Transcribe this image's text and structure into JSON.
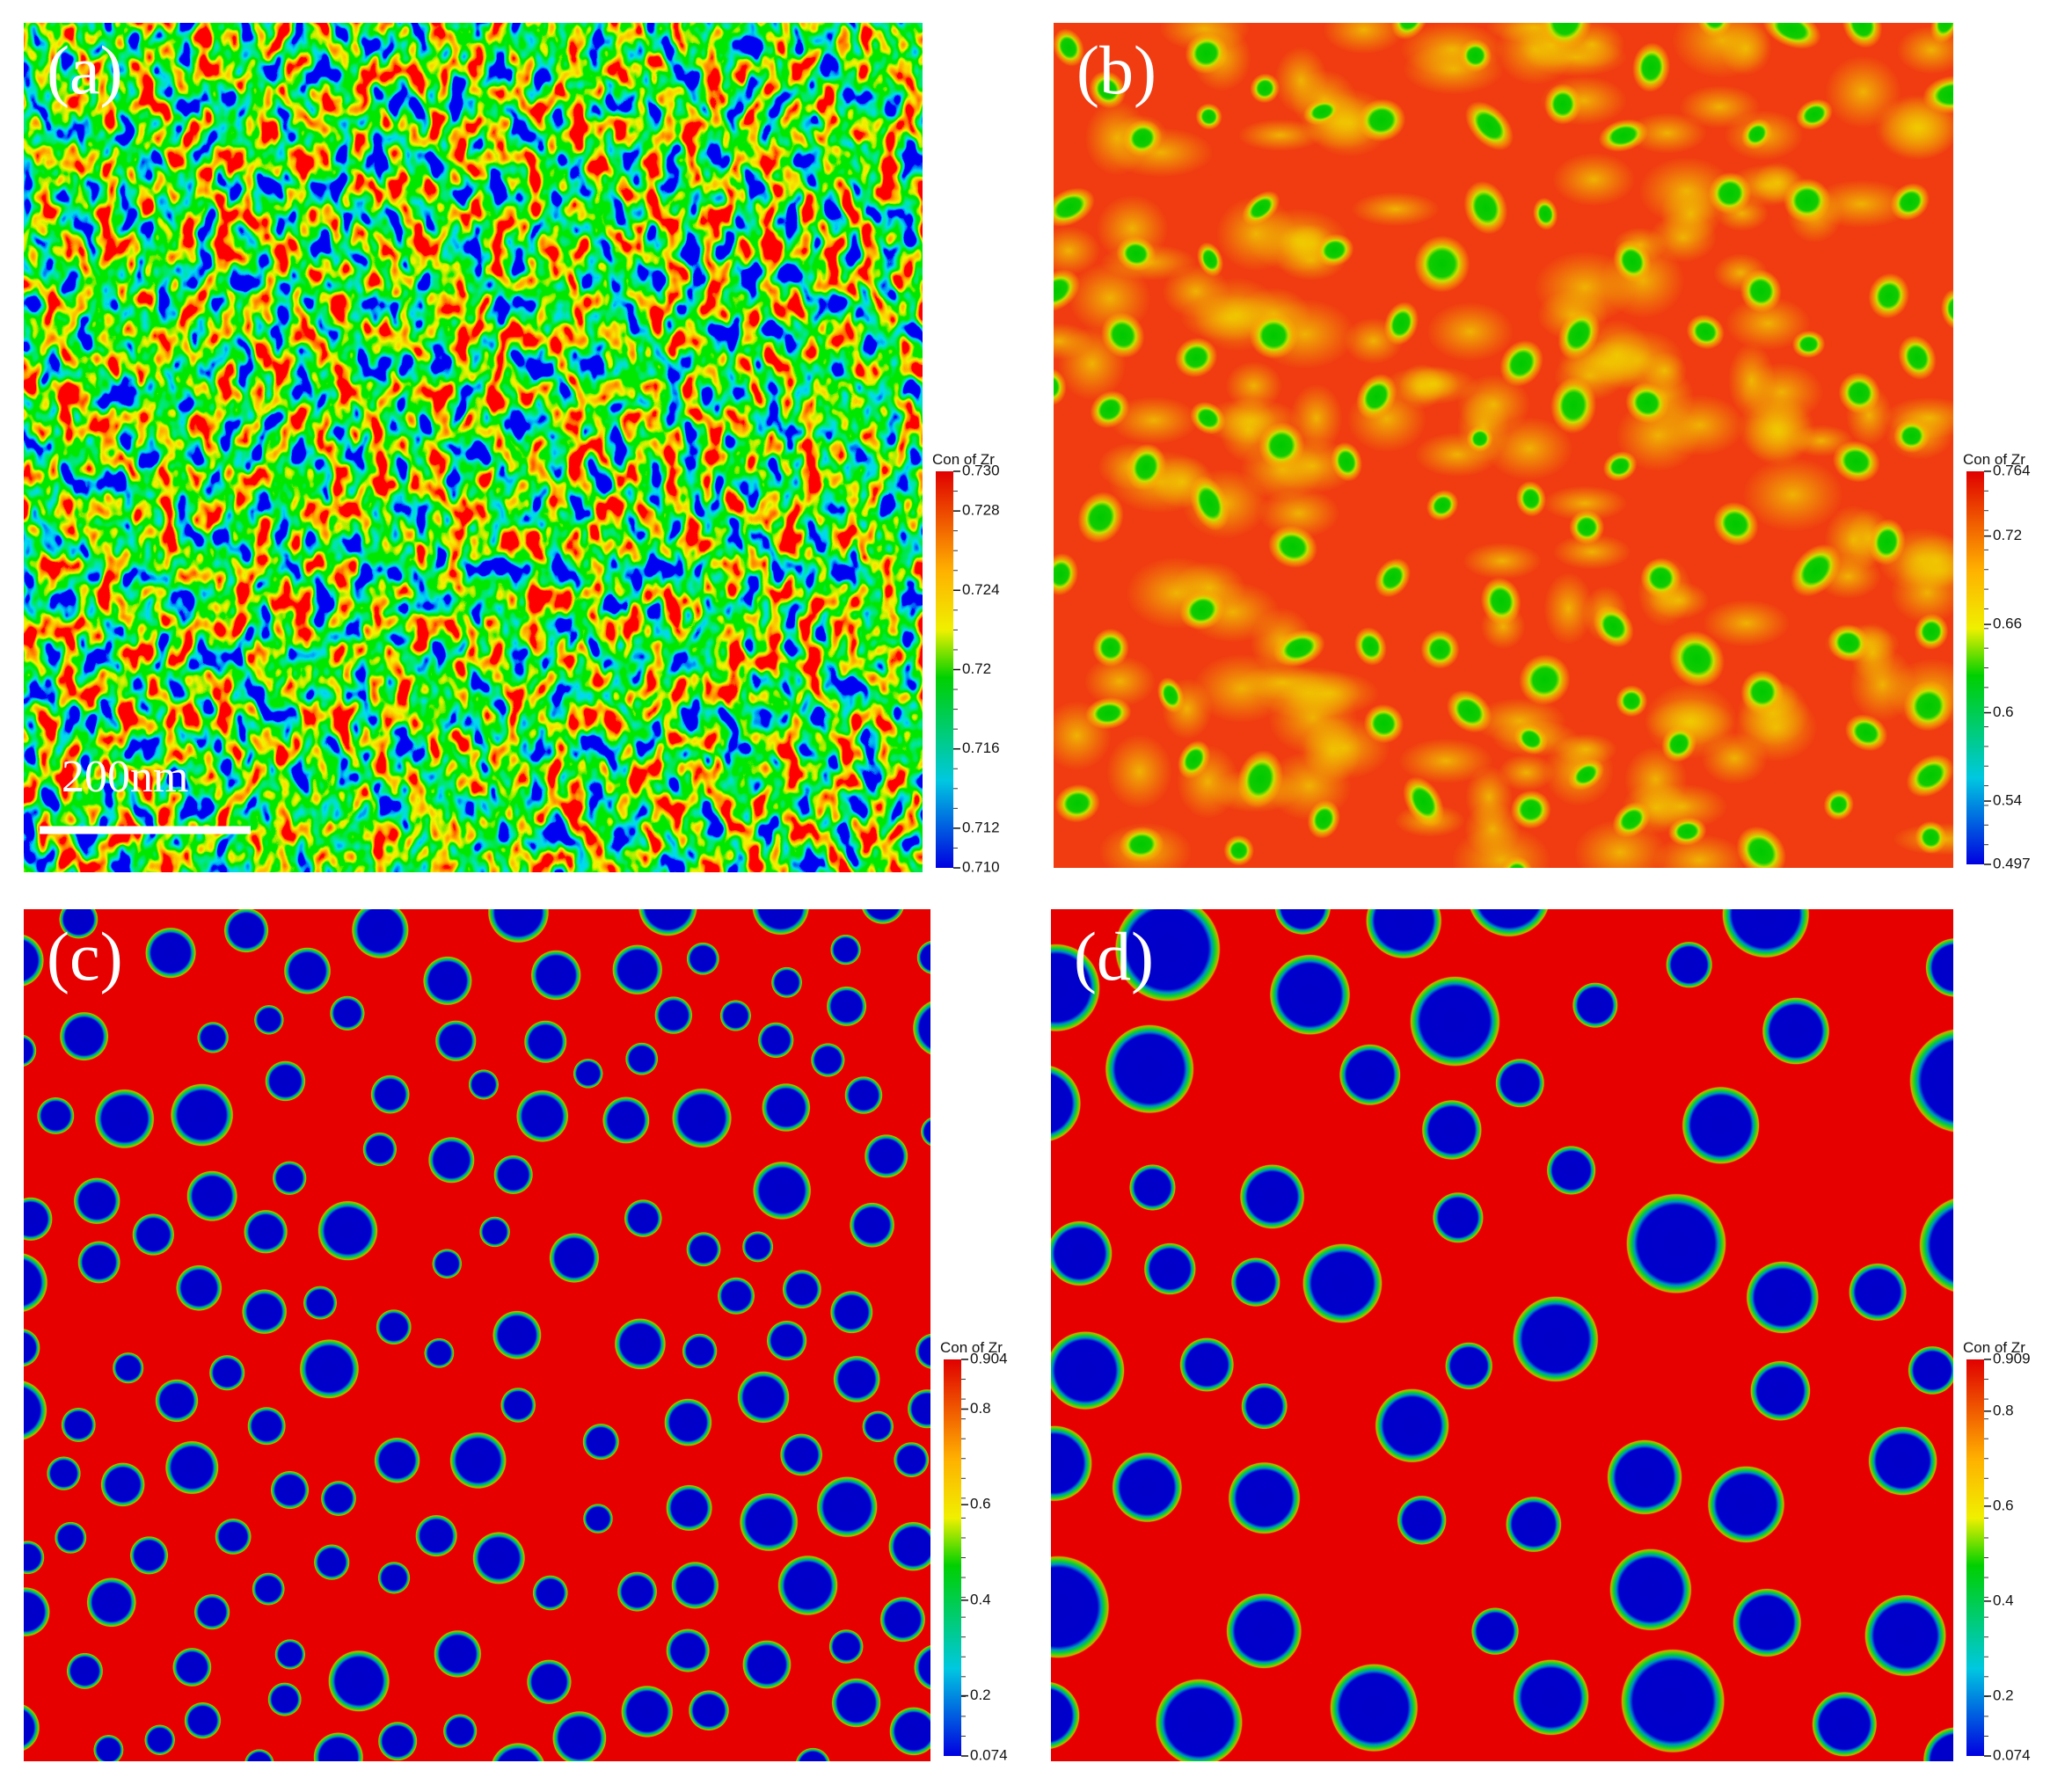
{
  "panels": [
    {
      "label": "(a)",
      "colorbar": {
        "title": "Con of Zr",
        "ticks": [
          "0.730",
          "0.728",
          "0.724",
          "0.72",
          "0.716",
          "0.712",
          "0.710"
        ]
      }
    },
    {
      "label": "(b)",
      "colorbar": {
        "title": "Con of Zr",
        "ticks": [
          "0.764",
          "0.72",
          "0.66",
          "0.6",
          "0.54",
          "0.497"
        ]
      }
    },
    {
      "label": "(c)",
      "colorbar": {
        "title": "Con of Zr",
        "ticks": [
          "0.904",
          "0.8",
          "0.6",
          "0.4",
          "0.2",
          "0.074"
        ]
      }
    },
    {
      "label": "(d)",
      "colorbar": {
        "title": "Con of Zr",
        "ticks": [
          "0.909",
          "0.8",
          "0.6",
          "0.4",
          "0.2",
          "0.074"
        ]
      }
    }
  ],
  "scale_bar": {
    "label": "200nm"
  }
}
